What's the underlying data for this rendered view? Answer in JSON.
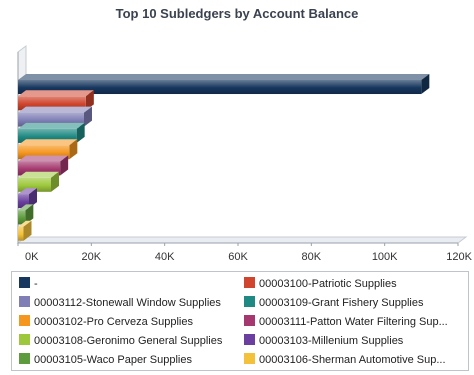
{
  "chart_data": {
    "type": "bar",
    "orientation": "horizontal",
    "three_d": true,
    "title": "Top 10 Subledgers by Account Balance",
    "xlabel": "",
    "ylabel": "",
    "xlim": [
      0,
      120000
    ],
    "x_ticks": [
      "0K",
      "20K",
      "40K",
      "60K",
      "80K",
      "100K",
      "120K"
    ],
    "grid": false,
    "legend_position": "bottom",
    "categories": [
      "-",
      "00003100-Patriotic Supplies",
      "00003112-Stonewall Window Supplies",
      "00003109-Grant Fishery Supplies",
      "00003102-Pro Cerveza Supplies",
      "00003111-Patton Water Filtering Sup...",
      "00003108-Geronimo General Supplies",
      "00003103-Millenium Supplies",
      "00003105-Waco Paper Supplies",
      "00003106-Sherman Automotive Sup..."
    ],
    "values": [
      110000,
      18500,
      18000,
      16000,
      14000,
      11500,
      9000,
      3000,
      2000,
      1500
    ],
    "colors": [
      "#17375e",
      "#d0452d",
      "#7f7fb6",
      "#1f8a83",
      "#f5961e",
      "#a4386f",
      "#9dc83c",
      "#6a3fa0",
      "#5c9c3c",
      "#f3c13a"
    ]
  }
}
